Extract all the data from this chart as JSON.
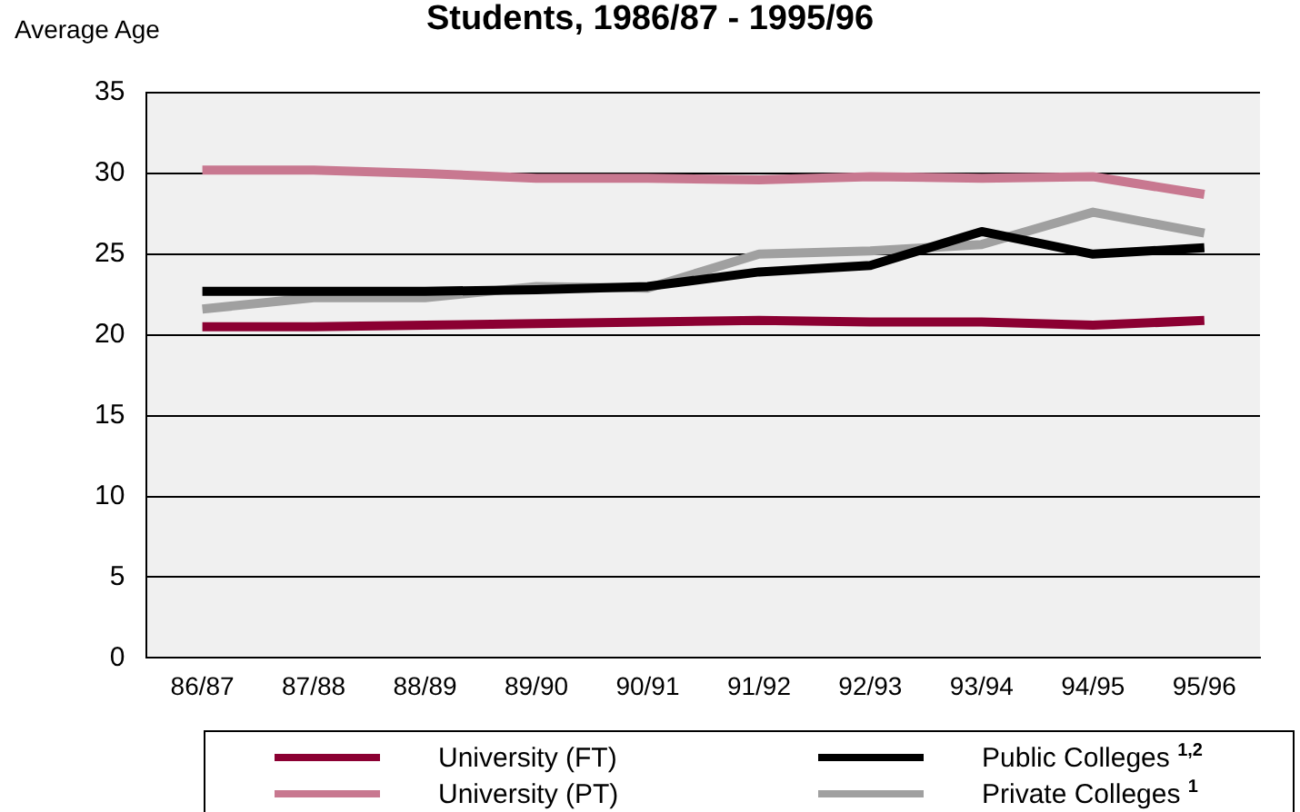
{
  "chart_data": {
    "type": "line",
    "title": "Students, 1986/87 - 1995/96",
    "ylabel": "Average Age",
    "categories": [
      "86/87",
      "87/88",
      "88/89",
      "89/90",
      "90/91",
      "91/92",
      "92/93",
      "93/94",
      "94/95",
      "95/96"
    ],
    "series": [
      {
        "name": "University (FT)",
        "color": "#8b0032",
        "values": [
          20.5,
          20.5,
          20.6,
          20.7,
          20.8,
          20.9,
          20.8,
          20.8,
          20.6,
          20.9
        ]
      },
      {
        "name": "University (PT)",
        "color": "#c87890",
        "values": [
          30.2,
          30.2,
          30.0,
          29.7,
          29.7,
          29.6,
          29.8,
          29.7,
          29.8,
          28.7
        ]
      },
      {
        "name": "Public Colleges $^{1,2}$",
        "color": "#000000",
        "values": [
          22.7,
          22.7,
          22.7,
          22.8,
          23.0,
          23.9,
          24.3,
          26.4,
          25.0,
          25.4
        ]
      },
      {
        "name": "Private Colleges $^{1}$",
        "color": "#a0a0a0",
        "values": [
          21.6,
          22.3,
          22.3,
          23.0,
          22.9,
          25.0,
          25.2,
          25.6,
          27.6,
          26.3
        ]
      }
    ],
    "ylim": [
      0,
      35
    ],
    "yticks": [
      0,
      5,
      10,
      15,
      20,
      25,
      30,
      35
    ],
    "grid": "y",
    "legend": "bottom",
    "marker": "none",
    "line_style": "solid"
  }
}
